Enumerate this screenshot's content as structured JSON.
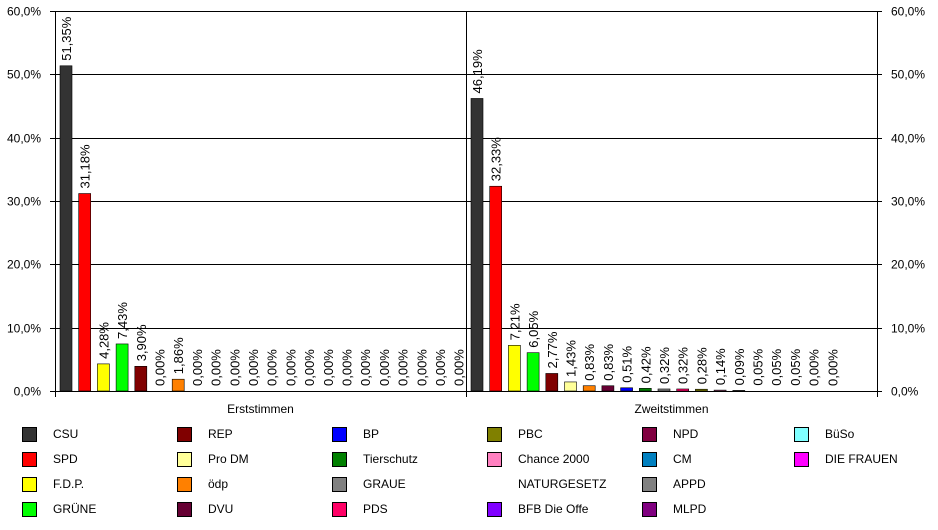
{
  "chart_data": {
    "type": "bar",
    "title": "",
    "ylim": [
      0,
      60
    ],
    "yticks": [
      "0,0%",
      "10,0%",
      "20,0%",
      "30,0%",
      "40,0%",
      "50,0%",
      "60,0%"
    ],
    "grid": true,
    "legend_position": "bottom",
    "series": [
      {
        "name": "CSU",
        "color": "#333333"
      },
      {
        "name": "SPD",
        "color": "#ff0000"
      },
      {
        "name": "F.D.P.",
        "color": "#ffff00"
      },
      {
        "name": "GRÜNE",
        "color": "#00ff00"
      },
      {
        "name": "REP",
        "color": "#800000"
      },
      {
        "name": "Pro DM",
        "color": "#ffff99"
      },
      {
        "name": "ödp",
        "color": "#ff8000"
      },
      {
        "name": "DVU",
        "color": "#660033"
      },
      {
        "name": "BP",
        "color": "#0000ff"
      },
      {
        "name": "Tierschutz",
        "color": "#008000"
      },
      {
        "name": "GRAUE",
        "color": "#808080"
      },
      {
        "name": "PDS",
        "color": "#ff0066"
      },
      {
        "name": "PBC",
        "color": "#808000"
      },
      {
        "name": "Chance 2000",
        "color": "#ff80c0"
      },
      {
        "name": "NATURGESETZ",
        "color": "#ffffff"
      },
      {
        "name": "BFB Die Offe",
        "color": "#8000ff"
      },
      {
        "name": "NPD",
        "color": "#800040"
      },
      {
        "name": "CM",
        "color": "#0080c0"
      },
      {
        "name": "APPD",
        "color": "#808080"
      },
      {
        "name": "MLPD",
        "color": "#800080"
      },
      {
        "name": "BüSo",
        "color": "#80ffff"
      },
      {
        "name": "DIE FRAUEN",
        "color": "#ff00ff"
      }
    ],
    "groups": [
      {
        "name": "Erststimmen",
        "values": [
          51.35,
          31.18,
          4.28,
          7.43,
          3.9,
          0.0,
          1.86,
          0.0,
          0.0,
          0.0,
          0.0,
          0.0,
          0.0,
          0.0,
          0.0,
          0.0,
          0.0,
          0.0,
          0.0,
          0.0,
          0.0,
          0.0
        ],
        "labels": [
          "51,35%",
          "31,18%",
          "4,28%",
          "7,43%",
          "3,90%",
          "0,00%",
          "1,86%",
          "0,00%",
          "0,00%",
          "0,00%",
          "0,00%",
          "0,00%",
          "0,00%",
          "0,00%",
          "0,00%",
          "0,00%",
          "0,00%",
          "0,00%",
          "0,00%",
          "0,00%",
          "0,00%",
          "0,00%"
        ]
      },
      {
        "name": "Zweitstimmen",
        "values": [
          46.19,
          32.33,
          7.21,
          6.05,
          2.77,
          1.43,
          0.83,
          0.83,
          0.51,
          0.42,
          0.32,
          0.32,
          0.28,
          0.14,
          0.09,
          0.05,
          0.05,
          0.05,
          0.0,
          0.0,
          0.0,
          0.0
        ],
        "labels": [
          "46,19%",
          "32,33%",
          "7,21%",
          "6,05%",
          "2,77%",
          "1,43%",
          "0,83%",
          "0,83%",
          "0,51%",
          "0,42%",
          "0,32%",
          "0,32%",
          "0,28%",
          "0,14%",
          "0,09%",
          "0,05%",
          "0,05%",
          "0,05%",
          "0,00%",
          "0,00%",
          "",
          ""
        ]
      }
    ]
  }
}
